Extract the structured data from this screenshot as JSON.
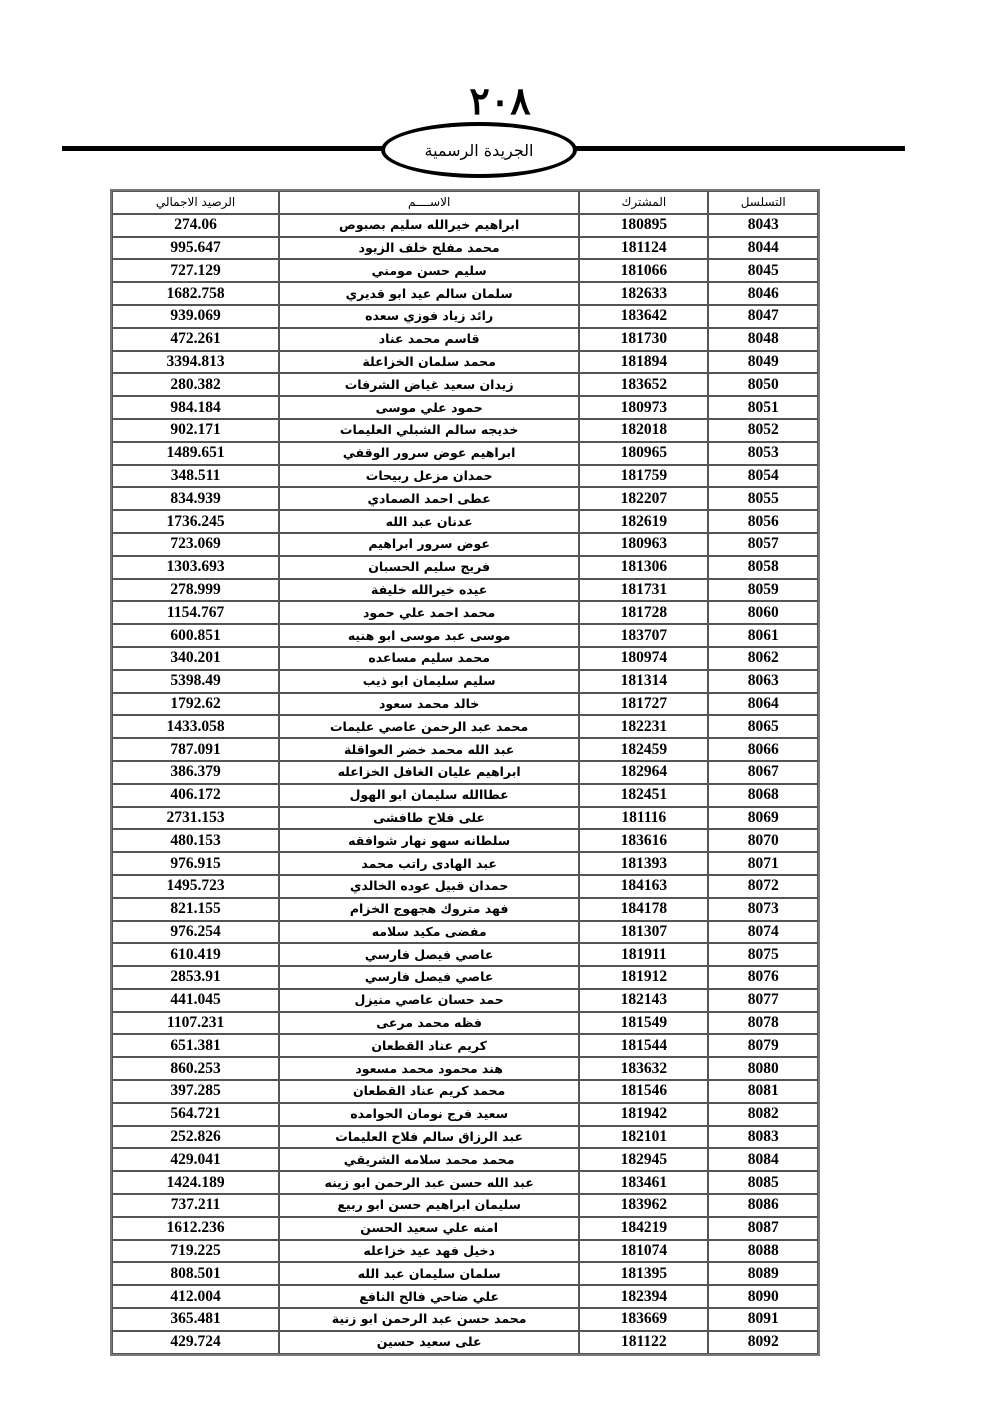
{
  "header": {
    "page_number": "٢٠٨",
    "publication": "الجريدة الرسمية"
  },
  "table": {
    "columns": [
      "الرصيد الاجمالي",
      "الاســــم",
      "المشترك",
      "التسلسل"
    ],
    "rows": [
      {
        "balance": "274.06",
        "name": "ابراهيم خيرالله سليم بصبوص",
        "subscriber": "180895",
        "serial": "8043"
      },
      {
        "balance": "995.647",
        "name": "محمد مفلح خلف  الزيود",
        "subscriber": "181124",
        "serial": "8044"
      },
      {
        "balance": "727.129",
        "name": "سليم حسن مومني",
        "subscriber": "181066",
        "serial": "8045"
      },
      {
        "balance": "1682.758",
        "name": "سلمان سالم عيد ابو قديري",
        "subscriber": "182633",
        "serial": "8046"
      },
      {
        "balance": "939.069",
        "name": "رائد زياد فوزي سعده",
        "subscriber": "183642",
        "serial": "8047"
      },
      {
        "balance": "472.261",
        "name": "قاسم محمد عناد",
        "subscriber": "181730",
        "serial": "8048"
      },
      {
        "balance": "3394.813",
        "name": "محمد سلمان الخزاعلة",
        "subscriber": "181894",
        "serial": "8049"
      },
      {
        "balance": "280.382",
        "name": "زيدان سعيد غياض الشرفات",
        "subscriber": "183652",
        "serial": "8050"
      },
      {
        "balance": "984.184",
        "name": "حمود علي موسى",
        "subscriber": "180973",
        "serial": "8051"
      },
      {
        "balance": "902.171",
        "name": "خديجه سالم الشبلي العليمات",
        "subscriber": "182018",
        "serial": "8052"
      },
      {
        "balance": "1489.651",
        "name": "ابراهيم  عوض سرور الوقفي",
        "subscriber": "180965",
        "serial": "8053"
      },
      {
        "balance": "348.511",
        "name": "حمدان مزعل ربيحات",
        "subscriber": "181759",
        "serial": "8054"
      },
      {
        "balance": "834.939",
        "name": "عطى احمد الصمادي",
        "subscriber": "182207",
        "serial": "8055"
      },
      {
        "balance": "1736.245",
        "name": "عدنان عبد الله",
        "subscriber": "182619",
        "serial": "8056"
      },
      {
        "balance": "723.069",
        "name": "عوض سرور ابراهيم",
        "subscriber": "180963",
        "serial": "8057"
      },
      {
        "balance": "1303.693",
        "name": "فريج سليم الحسبان",
        "subscriber": "181306",
        "serial": "8058"
      },
      {
        "balance": "278.999",
        "name": "عيده خيرالله خليفة",
        "subscriber": "181731",
        "serial": "8059"
      },
      {
        "balance": "1154.767",
        "name": "محمد احمد علي حمود",
        "subscriber": "181728",
        "serial": "8060"
      },
      {
        "balance": "600.851",
        "name": "موسى عبد موسى ابو هنيه",
        "subscriber": "183707",
        "serial": "8061"
      },
      {
        "balance": "340.201",
        "name": "محمد سليم مساعده",
        "subscriber": "180974",
        "serial": "8062"
      },
      {
        "balance": "5398.49",
        "name": "سليم سليمان ابو ذيب",
        "subscriber": "181314",
        "serial": "8063"
      },
      {
        "balance": "1792.62",
        "name": "خالد محمد سعود",
        "subscriber": "181727",
        "serial": "8064"
      },
      {
        "balance": "1433.058",
        "name": "محمد عبد الرحمن عاصي عليمات",
        "subscriber": "182231",
        "serial": "8065"
      },
      {
        "balance": "787.091",
        "name": "عبد الله محمد خضر العواقلة",
        "subscriber": "182459",
        "serial": "8066"
      },
      {
        "balance": "386.379",
        "name": "ابراهيم عليان الغافل الخزاعله",
        "subscriber": "182964",
        "serial": "8067"
      },
      {
        "balance": "406.172",
        "name": "عطاالله سليمان ابو الهول",
        "subscriber": "182451",
        "serial": "8068"
      },
      {
        "balance": "2731.153",
        "name": "على فلاح طافشى",
        "subscriber": "181116",
        "serial": "8069"
      },
      {
        "balance": "480.153",
        "name": "سلطانه سهو نهار شوافقه",
        "subscriber": "183616",
        "serial": "8070"
      },
      {
        "balance": "976.915",
        "name": "عبد الهادى راتب  محمد",
        "subscriber": "181393",
        "serial": "8071"
      },
      {
        "balance": "1495.723",
        "name": "حمدان قبيل عوده الخالدي",
        "subscriber": "184163",
        "serial": "8072"
      },
      {
        "balance": "821.155",
        "name": "فهد متروك هجهوج الخزام",
        "subscriber": "184178",
        "serial": "8073"
      },
      {
        "balance": "976.254",
        "name": "مفضى مكيد سلامه",
        "subscriber": "181307",
        "serial": "8074"
      },
      {
        "balance": "610.419",
        "name": "عاصي فيصل فارسي",
        "subscriber": "181911",
        "serial": "8075"
      },
      {
        "balance": "2853.91",
        "name": "عاصي فيصل فارسي",
        "subscriber": "181912",
        "serial": "8076"
      },
      {
        "balance": "441.045",
        "name": "حمد حسان عاصي منيزل",
        "subscriber": "182143",
        "serial": "8077"
      },
      {
        "balance": "1107.231",
        "name": "فظه محمد مرعى",
        "subscriber": "181549",
        "serial": "8078"
      },
      {
        "balance": "651.381",
        "name": "كريم عناد القطعان",
        "subscriber": "181544",
        "serial": "8079"
      },
      {
        "balance": "860.253",
        "name": "هند محمود محمد مسعود",
        "subscriber": "183632",
        "serial": "8080"
      },
      {
        "balance": "397.285",
        "name": "محمد كريم عناد القطعان",
        "subscriber": "181546",
        "serial": "8081"
      },
      {
        "balance": "564.721",
        "name": "سعيد فرج نومان الحوامده",
        "subscriber": "181942",
        "serial": "8082"
      },
      {
        "balance": "252.826",
        "name": "عبد الرزاق سالم فلاح العليمات",
        "subscriber": "182101",
        "serial": "8083"
      },
      {
        "balance": "429.041",
        "name": "محمد محمد سلامه الشريقي",
        "subscriber": "182945",
        "serial": "8084"
      },
      {
        "balance": "1424.189",
        "name": "عبد الله حسن عبد الرحمن ابو زينه",
        "subscriber": "183461",
        "serial": "8085"
      },
      {
        "balance": "737.211",
        "name": "سليمان ابراهيم حسن ابو ربيع",
        "subscriber": "183962",
        "serial": "8086"
      },
      {
        "balance": "1612.236",
        "name": "امنه علي سعيد الحسن",
        "subscriber": "184219",
        "serial": "8087"
      },
      {
        "balance": "719.225",
        "name": "دخيل فهد عيد خزاعله",
        "subscriber": "181074",
        "serial": "8088"
      },
      {
        "balance": "808.501",
        "name": "سلمان سليمان عبد الله",
        "subscriber": "181395",
        "serial": "8089"
      },
      {
        "balance": "412.004",
        "name": "علي ضاحي فالح النافع",
        "subscriber": "182394",
        "serial": "8090"
      },
      {
        "balance": "365.481",
        "name": "محمد حسن عبد الرحمن ابو زنية",
        "subscriber": "183669",
        "serial": "8091"
      },
      {
        "balance": "429.724",
        "name": "على سعيد حسين",
        "subscriber": "181122",
        "serial": "8092"
      }
    ]
  }
}
